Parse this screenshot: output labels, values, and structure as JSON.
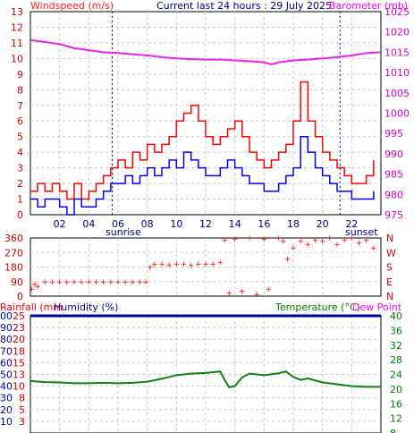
{
  "header": {
    "wind_label": "Windspeed (m/s)",
    "title": "Current last 24 hours : 29 July 2025",
    "baro_label": "Barometer (mb)"
  },
  "bottom_header": {
    "rain_label": "Rainfall (mm",
    "humidity_label": "Humidity (%)",
    "temp_label": "Temperature (°C)",
    "dew_label": "Dew Point"
  },
  "sun": {
    "sunrise_label": "sunrise",
    "sunset_label": "sunset",
    "sunrise_hour": 5.6,
    "sunset_hour": 21.2
  },
  "colors": {
    "wind_label": "#ff1f1f",
    "title": "#000080",
    "baro_label": "#ff00ff",
    "gust": "#ff0000",
    "avg": "#0000ff",
    "baro_line": "#ee22ee",
    "rain_label": "#ff0000",
    "humidity": "#0000a0",
    "temp": "#008000",
    "dew": "#ff00ff",
    "temp_line": "#108010",
    "grid": "#c8c8c8"
  },
  "chart_data": [
    {
      "type": "line",
      "title": "Current last 24 hours : 29 July 2025",
      "x_ticks": [
        "02",
        "04",
        "06",
        "08",
        "10",
        "12",
        "14",
        "16",
        "18",
        "20",
        "22"
      ],
      "x_tick_hours": [
        2,
        4,
        6,
        8,
        10,
        12,
        14,
        16,
        18,
        20,
        22
      ],
      "xlim": [
        0,
        24
      ],
      "y_left": {
        "label": "Windspeed (m/s)",
        "lim": [
          0,
          13
        ],
        "ticks": [
          "0",
          "1",
          "2",
          "3",
          "4",
          "5",
          "6",
          "7",
          "8",
          "9",
          "10",
          "11",
          "12",
          "13"
        ]
      },
      "y_right": {
        "label": "Barometer (mb)",
        "lim": [
          975,
          1025
        ],
        "ticks": [
          "975",
          "980",
          "985",
          "990",
          "995",
          "1000",
          "1005",
          "1010",
          "1015",
          "1020",
          "1025"
        ]
      },
      "series": [
        {
          "name": "gust",
          "x": [
            0,
            0.5,
            1,
            1.5,
            2,
            2.5,
            3,
            3.5,
            4,
            4.5,
            5,
            5.5,
            6,
            6.5,
            7,
            7.5,
            8,
            8.5,
            9,
            9.5,
            10,
            10.5,
            11,
            11.5,
            12,
            12.5,
            13,
            13.5,
            14,
            14.5,
            15,
            15.5,
            16,
            16.5,
            17,
            17.5,
            18,
            18.5,
            19,
            19.5,
            20,
            20.5,
            21,
            21.5,
            22,
            22.5,
            23,
            23.5
          ],
          "values": [
            1.5,
            2,
            1.5,
            2,
            1.5,
            1,
            2,
            1,
            1.5,
            2,
            2.5,
            3,
            3.5,
            3,
            4,
            3.5,
            4.5,
            4,
            4.5,
            5,
            6,
            6.5,
            7,
            6,
            5,
            4.5,
            5,
            5.5,
            6,
            5,
            4,
            3.5,
            3,
            3.5,
            4,
            4.5,
            6,
            8.5,
            6,
            5,
            4,
            3.5,
            3,
            2.5,
            2,
            2,
            2.5,
            3.5
          ]
        },
        {
          "name": "average",
          "x": [
            0,
            0.5,
            1,
            1.5,
            2,
            2.5,
            3,
            3.5,
            4,
            4.5,
            5,
            5.5,
            6,
            6.5,
            7,
            7.5,
            8,
            8.5,
            9,
            9.5,
            10,
            10.5,
            11,
            11.5,
            12,
            12.5,
            13,
            13.5,
            14,
            14.5,
            15,
            15.5,
            16,
            16.5,
            17,
            17.5,
            18,
            18.5,
            19,
            19.5,
            20,
            20.5,
            21,
            21.5,
            22,
            22.5,
            23,
            23.5
          ],
          "values": [
            1,
            0.5,
            1,
            1,
            0.5,
            0,
            1,
            0.5,
            0.5,
            1,
            1.5,
            2,
            2,
            2.5,
            2,
            2.5,
            3,
            2.5,
            3,
            3.5,
            3,
            4,
            3.5,
            3,
            2.5,
            2.5,
            3,
            3.5,
            3,
            2.5,
            2,
            2,
            1.5,
            1.5,
            2,
            2.5,
            3,
            5,
            4,
            3,
            2.5,
            2,
            1.5,
            1.5,
            1,
            1,
            1,
            1.5
          ]
        },
        {
          "name": "barometer",
          "x": [
            0,
            1,
            2,
            3,
            4,
            5,
            6,
            7,
            8,
            9,
            10,
            11,
            12,
            13,
            14,
            15,
            16,
            16.5,
            17,
            18,
            19,
            20,
            21,
            22,
            23,
            24
          ],
          "values": [
            1018,
            1017.5,
            1017,
            1016,
            1015.5,
            1015,
            1014.8,
            1014.5,
            1014.2,
            1013.8,
            1013.5,
            1013.3,
            1013.2,
            1013.2,
            1013,
            1012.8,
            1012.5,
            1012,
            1012.5,
            1013,
            1013.2,
            1013.5,
            1013.8,
            1014.2,
            1014.8,
            1015
          ]
        }
      ]
    },
    {
      "type": "scatter",
      "name": "wind direction",
      "y_left": {
        "lim": [
          0,
          360
        ],
        "ticks": [
          "0",
          "90",
          "180",
          "270",
          "360"
        ]
      },
      "y_right": {
        "ticks": [
          "N",
          "E",
          "S",
          "W",
          "N"
        ]
      },
      "xlim": [
        0,
        24
      ],
      "x": [
        0.1,
        0.3,
        0.5,
        1,
        1.5,
        2,
        2.5,
        3,
        3.5,
        4,
        4.5,
        5,
        5.5,
        6,
        6.5,
        7,
        7.5,
        7.9,
        8.2,
        8.5,
        9,
        9.5,
        10,
        10.5,
        11,
        11.5,
        12,
        12.5,
        13,
        13.3,
        13.6,
        14,
        14.5,
        15,
        15.5,
        16,
        16.3,
        17,
        17.3,
        17.6,
        18,
        18.5,
        19,
        19.5,
        20,
        20.5,
        21,
        21.5,
        22,
        22.5,
        23,
        23.5
      ],
      "values": [
        45,
        75,
        60,
        90,
        90,
        90,
        90,
        90,
        90,
        90,
        90,
        90,
        90,
        90,
        90,
        90,
        90,
        90,
        180,
        200,
        200,
        195,
        200,
        200,
        190,
        200,
        200,
        200,
        210,
        350,
        20,
        355,
        30,
        360,
        10,
        355,
        45,
        360,
        340,
        230,
        300,
        340,
        320,
        350,
        340,
        360,
        320,
        350,
        360,
        330,
        350,
        300
      ]
    },
    {
      "type": "line",
      "name": "temperature and humidity",
      "y_left": {
        "lim": [
          0,
          100
        ],
        "ticks": [
          "10",
          "20",
          "30",
          "40",
          "50",
          "60",
          "70",
          "80",
          "90",
          "100"
        ]
      },
      "y_left_secondary": {
        "ticks": [
          "3",
          "5",
          "8",
          "10",
          "13",
          "15",
          "18",
          "20",
          "23",
          "25"
        ]
      },
      "y_right": {
        "lim": [
          8,
          40
        ],
        "ticks": [
          "8",
          "12",
          "16",
          "20",
          "24",
          "28",
          "32",
          "36",
          "40"
        ]
      },
      "xlim": [
        0,
        24
      ],
      "series": [
        {
          "name": "humidity",
          "x": [
            0,
            24
          ],
          "values": [
            100,
            100
          ]
        },
        {
          "name": "temperature",
          "x": [
            0,
            1,
            2,
            3,
            4,
            5,
            6,
            7,
            8,
            9,
            10,
            11,
            12,
            13,
            13.3,
            13.6,
            14,
            14.5,
            15,
            16,
            17,
            17.5,
            18,
            18.5,
            19,
            20,
            21,
            22,
            23,
            24
          ],
          "values": [
            22.2,
            21.9,
            21.8,
            21.6,
            21.6,
            21.7,
            21.6,
            21.7,
            22,
            22.8,
            23.8,
            24.2,
            24.4,
            24.8,
            22.5,
            20.5,
            20.8,
            23.2,
            24.2,
            23.8,
            24.3,
            24.8,
            23.3,
            22.5,
            22.9,
            21.8,
            21.3,
            20.8,
            20.6,
            20.6
          ]
        }
      ]
    }
  ]
}
